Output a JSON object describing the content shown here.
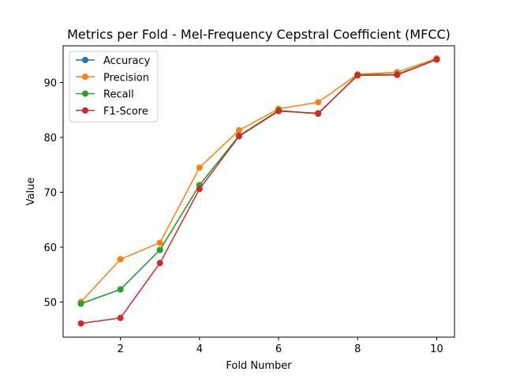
{
  "chart_data": {
    "type": "line",
    "title": "Metrics per Fold - Mel-Frequency Cepstral Coefficient (MFCC)",
    "xlabel": "Fold Number",
    "ylabel": "Value",
    "x": [
      1,
      2,
      3,
      4,
      5,
      6,
      7,
      8,
      9,
      10
    ],
    "xlim": [
      0.55,
      10.45
    ],
    "ylim": [
      43.6,
      96.7
    ],
    "xticks": [
      2,
      4,
      6,
      8,
      10
    ],
    "yticks": [
      50,
      60,
      70,
      80,
      90
    ],
    "grid": false,
    "legend_position": "upper-left",
    "series": [
      {
        "name": "Accuracy",
        "color": "#1f77b4",
        "values": [
          49.7,
          52.3,
          59.5,
          71.3,
          80.3,
          84.9,
          84.3,
          91.4,
          91.5,
          94.2
        ]
      },
      {
        "name": "Precision",
        "color": "#ff7f0e",
        "values": [
          50.0,
          57.8,
          60.8,
          74.5,
          81.3,
          85.2,
          86.4,
          91.5,
          91.9,
          94.4
        ]
      },
      {
        "name": "Recall",
        "color": "#2ca02c",
        "values": [
          49.7,
          52.3,
          59.5,
          71.3,
          80.3,
          84.9,
          84.3,
          91.4,
          91.5,
          94.2
        ]
      },
      {
        "name": "F1-Score",
        "color": "#d62728",
        "values": [
          46.1,
          47.1,
          57.1,
          70.6,
          80.2,
          84.8,
          84.4,
          91.3,
          91.4,
          94.2
        ]
      }
    ]
  }
}
